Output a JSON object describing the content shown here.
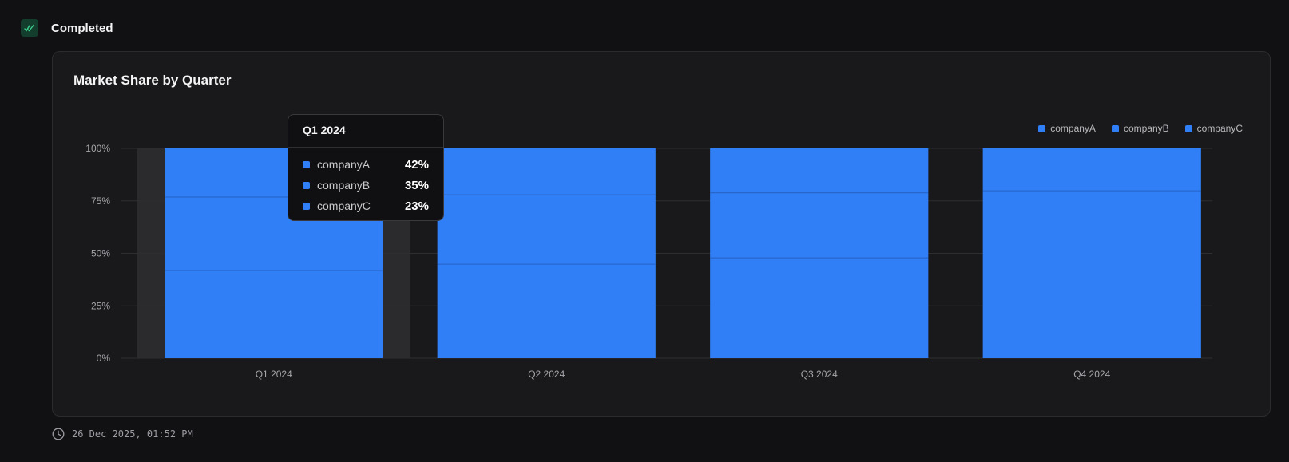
{
  "status": {
    "label": "Completed",
    "icon": "double-check-icon",
    "icon_color": "#3ecf8e"
  },
  "chart_data": {
    "type": "bar",
    "stacked": true,
    "title": "Market Share by Quarter",
    "categories": [
      "Q1 2024",
      "Q2 2024",
      "Q3 2024",
      "Q4 2024"
    ],
    "series": [
      {
        "name": "companyA",
        "values": [
          42,
          45,
          48,
          80
        ]
      },
      {
        "name": "companyB",
        "values": [
          35,
          33,
          31,
          0
        ]
      },
      {
        "name": "companyC",
        "values": [
          23,
          22,
          21,
          20
        ]
      }
    ],
    "ylim": [
      0,
      100
    ],
    "yticks": [
      "0%",
      "25%",
      "50%",
      "75%",
      "100%"
    ],
    "grid": true,
    "legend_position": "top-right",
    "bar_color": "#317ff6",
    "hovered_category_index": 0
  },
  "tooltip": {
    "title": "Q1 2024",
    "rows": [
      {
        "name": "companyA",
        "value": "42%"
      },
      {
        "name": "companyB",
        "value": "35%"
      },
      {
        "name": "companyC",
        "value": "23%"
      }
    ]
  },
  "footer": {
    "timestamp": "26 Dec 2025, 01:52 PM",
    "icon": "clock-icon"
  }
}
